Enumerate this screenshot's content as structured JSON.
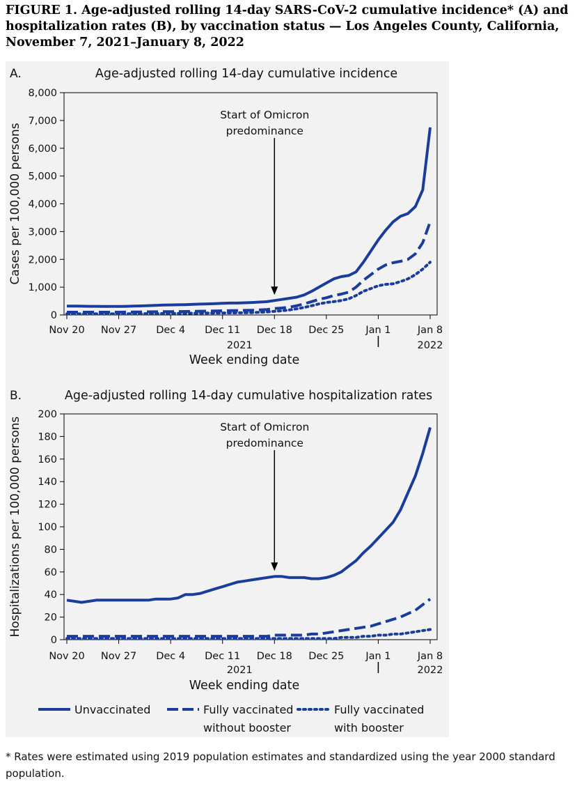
{
  "figure_title": "FIGURE 1. Age-adjusted rolling 14-day SARS-CoV-2 cumulative incidence* (A) and hospitalization rates (B), by vaccination status — Los Angeles County, California, November 7, 2021–January 8, 2022",
  "footnote": "* Rates were estimated using 2019 population estimates and standardized using the year 2000 standard population.",
  "colors": {
    "series": "#1a3d9c",
    "background": "#f2f2f2"
  },
  "legend": [
    {
      "label_line1": "Unvaccinated",
      "label_line2": "",
      "style": "solid"
    },
    {
      "label_line1": "Fully vaccinated",
      "label_line2": "without booster",
      "style": "dashed"
    },
    {
      "label_line1": "Fully vaccinated",
      "label_line2": "with booster",
      "style": "dotted"
    }
  ],
  "chart_data": [
    {
      "type": "line",
      "panel_label": "A.",
      "title": "Age-adjusted rolling 14-day cumulative incidence",
      "ylabel": "Cases per 100,000 persons",
      "xlabel": "Week ending date",
      "x_ticks": [
        "Nov 20",
        "Nov 27",
        "Dec 4",
        "Dec 11",
        "Dec 18",
        "Dec 25",
        "Jan 1",
        "Jan 8"
      ],
      "year_labels": {
        "2021": "2021",
        "2022": "2022"
      },
      "y_ticks": [
        "0",
        "1,000",
        "2,000",
        "3,000",
        "4,000",
        "5,000",
        "6,000",
        "7,000",
        "8,000"
      ],
      "ylim": [
        0,
        8000
      ],
      "annotation": {
        "line1": "Start of Omicron",
        "line2": "predominance",
        "x": "Dec 18"
      },
      "x": [
        "Nov 20",
        "Nov 21",
        "Nov 22",
        "Nov 23",
        "Nov 24",
        "Nov 25",
        "Nov 26",
        "Nov 27",
        "Nov 28",
        "Nov 29",
        "Nov 30",
        "Dec 1",
        "Dec 2",
        "Dec 3",
        "Dec 4",
        "Dec 5",
        "Dec 6",
        "Dec 7",
        "Dec 8",
        "Dec 9",
        "Dec 10",
        "Dec 11",
        "Dec 12",
        "Dec 13",
        "Dec 14",
        "Dec 15",
        "Dec 16",
        "Dec 17",
        "Dec 18",
        "Dec 19",
        "Dec 20",
        "Dec 21",
        "Dec 22",
        "Dec 23",
        "Dec 24",
        "Dec 25",
        "Dec 26",
        "Dec 27",
        "Dec 28",
        "Dec 29",
        "Dec 30",
        "Dec 31",
        "Jan 1",
        "Jan 2",
        "Jan 3",
        "Jan 4",
        "Jan 5",
        "Jan 6",
        "Jan 7",
        "Jan 8"
      ],
      "series": [
        {
          "name": "Unvaccinated",
          "style": "solid",
          "values": [
            320,
            318,
            315,
            312,
            310,
            308,
            306,
            305,
            310,
            318,
            325,
            335,
            345,
            355,
            360,
            365,
            372,
            380,
            390,
            400,
            410,
            420,
            428,
            430,
            440,
            450,
            465,
            480,
            520,
            560,
            600,
            640,
            720,
            850,
            1000,
            1150,
            1300,
            1380,
            1420,
            1550,
            1900,
            2300,
            2700,
            3050,
            3350,
            3550,
            3650,
            3900,
            4500,
            6750
          ]
        },
        {
          "name": "Fully vaccinated without booster",
          "style": "dashed",
          "values": [
            100,
            100,
            100,
            100,
            100,
            100,
            100,
            100,
            102,
            105,
            108,
            112,
            115,
            118,
            120,
            122,
            125,
            130,
            135,
            140,
            145,
            150,
            155,
            160,
            165,
            170,
            180,
            195,
            230,
            250,
            280,
            330,
            400,
            480,
            560,
            620,
            700,
            750,
            820,
            1000,
            1250,
            1450,
            1650,
            1800,
            1880,
            1930,
            2000,
            2200,
            2600,
            3350
          ]
        },
        {
          "name": "Fully vaccinated with booster",
          "style": "dotted",
          "values": [
            40,
            40,
            40,
            40,
            40,
            40,
            40,
            40,
            42,
            44,
            46,
            48,
            50,
            52,
            55,
            58,
            60,
            62,
            65,
            68,
            70,
            72,
            75,
            78,
            80,
            85,
            95,
            110,
            130,
            150,
            180,
            220,
            270,
            330,
            400,
            450,
            480,
            520,
            580,
            700,
            850,
            950,
            1050,
            1100,
            1120,
            1200,
            1300,
            1450,
            1650,
            1900
          ]
        }
      ]
    },
    {
      "type": "line",
      "panel_label": "B.",
      "title": "Age-adjusted rolling 14-day cumulative hospitalization rates",
      "ylabel": "Hospitalizations per 100,000 persons",
      "xlabel": "Week ending date",
      "x_ticks": [
        "Nov 20",
        "Nov 27",
        "Dec 4",
        "Dec 11",
        "Dec 18",
        "Dec 25",
        "Jan 1",
        "Jan 8"
      ],
      "year_labels": {
        "2021": "2021",
        "2022": "2022"
      },
      "y_ticks": [
        "0",
        "20",
        "40",
        "60",
        "80",
        "100",
        "120",
        "140",
        "160",
        "180",
        "200"
      ],
      "ylim": [
        0,
        200
      ],
      "annotation": {
        "line1": "Start of Omicron",
        "line2": "predominance",
        "x": "Dec 18"
      },
      "x": [
        "Nov 20",
        "Nov 21",
        "Nov 22",
        "Nov 23",
        "Nov 24",
        "Nov 25",
        "Nov 26",
        "Nov 27",
        "Nov 28",
        "Nov 29",
        "Nov 30",
        "Dec 1",
        "Dec 2",
        "Dec 3",
        "Dec 4",
        "Dec 5",
        "Dec 6",
        "Dec 7",
        "Dec 8",
        "Dec 9",
        "Dec 10",
        "Dec 11",
        "Dec 12",
        "Dec 13",
        "Dec 14",
        "Dec 15",
        "Dec 16",
        "Dec 17",
        "Dec 18",
        "Dec 19",
        "Dec 20",
        "Dec 21",
        "Dec 22",
        "Dec 23",
        "Dec 24",
        "Dec 25",
        "Dec 26",
        "Dec 27",
        "Dec 28",
        "Dec 29",
        "Dec 30",
        "Dec 31",
        "Jan 1",
        "Jan 2",
        "Jan 3",
        "Jan 4",
        "Jan 5",
        "Jan 6",
        "Jan 7",
        "Jan 8"
      ],
      "series": [
        {
          "name": "Unvaccinated",
          "style": "solid",
          "values": [
            35,
            34,
            33,
            34,
            35,
            35,
            35,
            35,
            35,
            35,
            35,
            35,
            36,
            36,
            36,
            37,
            40,
            40,
            41,
            43,
            45,
            47,
            49,
            51,
            52,
            53,
            54,
            55,
            56,
            56,
            55,
            55,
            55,
            54,
            54,
            55,
            57,
            60,
            65,
            70,
            77,
            83,
            90,
            97,
            104,
            115,
            130,
            145,
            165,
            188
          ]
        },
        {
          "name": "Fully vaccinated without booster",
          "style": "dashed",
          "values": [
            3,
            3,
            3,
            3,
            3,
            3,
            3,
            3,
            3,
            3,
            3,
            3,
            3,
            3,
            3,
            3,
            3,
            3,
            3,
            3,
            3,
            3,
            3,
            3,
            3,
            3,
            3,
            3,
            4,
            4,
            4,
            4,
            4,
            5,
            5,
            6,
            7,
            8,
            9,
            10,
            11,
            12,
            14,
            16,
            18,
            20,
            23,
            26,
            31,
            36
          ]
        },
        {
          "name": "Fully vaccinated with booster",
          "style": "dotted",
          "values": [
            1,
            1,
            1,
            1,
            1,
            1,
            1,
            1,
            1,
            1,
            1,
            1,
            1,
            1,
            1,
            1,
            1,
            1,
            1,
            1,
            1,
            1,
            1,
            1,
            1,
            1,
            1,
            1,
            1,
            1,
            1,
            1,
            1,
            1,
            1,
            1,
            1,
            2,
            2,
            2,
            3,
            3,
            4,
            4,
            5,
            5,
            6,
            7,
            8,
            9
          ]
        }
      ]
    }
  ]
}
